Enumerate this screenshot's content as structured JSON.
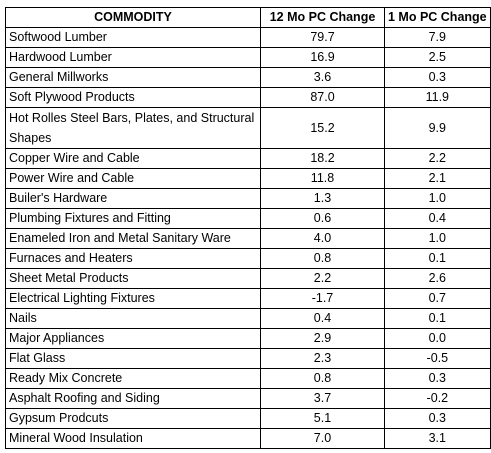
{
  "table": {
    "headers": [
      "COMMODITY",
      "12 Mo PC Change",
      "1 Mo PC Change"
    ],
    "rows": [
      [
        "Softwood Lumber",
        "79.7",
        "7.9"
      ],
      [
        "Hardwood Lumber",
        "16.9",
        "2.5"
      ],
      [
        "General Millworks",
        "3.6",
        "0.3"
      ],
      [
        "Soft Plywood Products",
        "87.0",
        "11.9"
      ],
      [
        "Hot Rolles Steel Bars, Plates, and Structural Shapes",
        "15.2",
        "9.9"
      ],
      [
        "Copper Wire and Cable",
        "18.2",
        "2.2"
      ],
      [
        "Power Wire and Cable",
        "11.8",
        "2.1"
      ],
      [
        "Builer's Hardware",
        "1.3",
        "1.0"
      ],
      [
        "Plumbing Fixtures and Fitting",
        "0.6",
        "0.4"
      ],
      [
        "Enameled Iron and Metal Sanitary Ware",
        "4.0",
        "1.0"
      ],
      [
        "Furnaces and Heaters",
        "0.8",
        "0.1"
      ],
      [
        "Sheet Metal Products",
        "2.2",
        "2.6"
      ],
      [
        "Electrical Lighting Fixtures",
        "-1.7",
        "0.7"
      ],
      [
        "Nails",
        "0.4",
        "0.1"
      ],
      [
        "Major Appliances",
        "2.9",
        "0.0"
      ],
      [
        "Flat Glass",
        "2.3",
        "-0.5"
      ],
      [
        "Ready Mix Concrete",
        "0.8",
        "0.3"
      ],
      [
        "Asphalt Roofing and Siding",
        "3.7",
        "-0.2"
      ],
      [
        "Gypsum Prodcuts",
        "5.1",
        "0.3"
      ],
      [
        "Mineral Wood Insulation",
        "7.0",
        "3.1"
      ]
    ]
  }
}
